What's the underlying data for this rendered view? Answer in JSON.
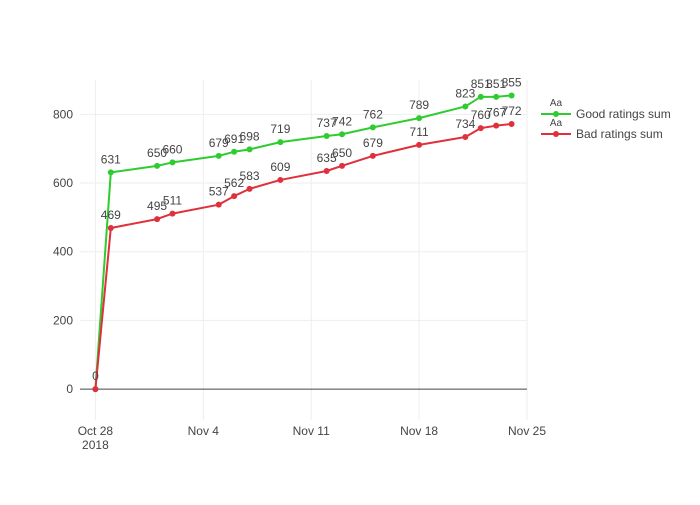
{
  "colors": {
    "good": "#2ecc2e",
    "bad": "#e0303c",
    "grid": "#eeeeee",
    "zero_line": "#444444",
    "text": "#444444"
  },
  "chart_data": {
    "type": "line",
    "title": "",
    "xlabel": "",
    "ylabel": "",
    "x_axis_type": "date",
    "xlim": [
      "2018-10-27",
      "2018-11-25"
    ],
    "ylim": [
      -90,
      900
    ],
    "x_ticks": [
      {
        "value": "2018-10-28",
        "label": "Oct 28",
        "sublabel": "2018"
      },
      {
        "value": "2018-11-04",
        "label": "Nov 4",
        "sublabel": ""
      },
      {
        "value": "2018-11-11",
        "label": "Nov 11",
        "sublabel": ""
      },
      {
        "value": "2018-11-18",
        "label": "Nov 18",
        "sublabel": ""
      },
      {
        "value": "2018-11-25",
        "label": "Nov 25",
        "sublabel": ""
      }
    ],
    "y_ticks": [
      0,
      200,
      400,
      600,
      800
    ],
    "grid": true,
    "legend_position": "top-right",
    "legend_symbol_text": "Aa",
    "series": [
      {
        "key": "good",
        "name": "Good ratings sum",
        "points": [
          {
            "x": "2018-10-28",
            "y": 0,
            "label": "0"
          },
          {
            "x": "2018-10-29",
            "y": 631,
            "label": "631"
          },
          {
            "x": "2018-11-01",
            "y": 650,
            "label": "650"
          },
          {
            "x": "2018-11-02",
            "y": 660,
            "label": "660"
          },
          {
            "x": "2018-11-05",
            "y": 679,
            "label": "679"
          },
          {
            "x": "2018-11-06",
            "y": 691,
            "label": "691"
          },
          {
            "x": "2018-11-07",
            "y": 698,
            "label": "698"
          },
          {
            "x": "2018-11-09",
            "y": 719,
            "label": "719"
          },
          {
            "x": "2018-11-12",
            "y": 737,
            "label": "737"
          },
          {
            "x": "2018-11-13",
            "y": 742,
            "label": "742"
          },
          {
            "x": "2018-11-15",
            "y": 762,
            "label": "762"
          },
          {
            "x": "2018-11-18",
            "y": 789,
            "label": "789"
          },
          {
            "x": "2018-11-21",
            "y": 823,
            "label": "823"
          },
          {
            "x": "2018-11-22",
            "y": 851,
            "label": "851"
          },
          {
            "x": "2018-11-23",
            "y": 851,
            "label": "851"
          },
          {
            "x": "2018-11-24",
            "y": 855,
            "label": "855"
          }
        ]
      },
      {
        "key": "bad",
        "name": "Bad ratings sum",
        "points": [
          {
            "x": "2018-10-28",
            "y": 0,
            "label": ""
          },
          {
            "x": "2018-10-29",
            "y": 469,
            "label": "469"
          },
          {
            "x": "2018-11-01",
            "y": 495,
            "label": "495"
          },
          {
            "x": "2018-11-02",
            "y": 511,
            "label": "511"
          },
          {
            "x": "2018-11-05",
            "y": 537,
            "label": "537"
          },
          {
            "x": "2018-11-06",
            "y": 562,
            "label": "562"
          },
          {
            "x": "2018-11-07",
            "y": 583,
            "label": "583"
          },
          {
            "x": "2018-11-09",
            "y": 609,
            "label": "609"
          },
          {
            "x": "2018-11-12",
            "y": 635,
            "label": "635"
          },
          {
            "x": "2018-11-13",
            "y": 650,
            "label": "650"
          },
          {
            "x": "2018-11-15",
            "y": 679,
            "label": "679"
          },
          {
            "x": "2018-11-18",
            "y": 711,
            "label": "711"
          },
          {
            "x": "2018-11-21",
            "y": 734,
            "label": "734"
          },
          {
            "x": "2018-11-22",
            "y": 760,
            "label": "760"
          },
          {
            "x": "2018-11-23",
            "y": 767,
            "label": "767"
          },
          {
            "x": "2018-11-24",
            "y": 772,
            "label": "772"
          }
        ]
      }
    ]
  }
}
